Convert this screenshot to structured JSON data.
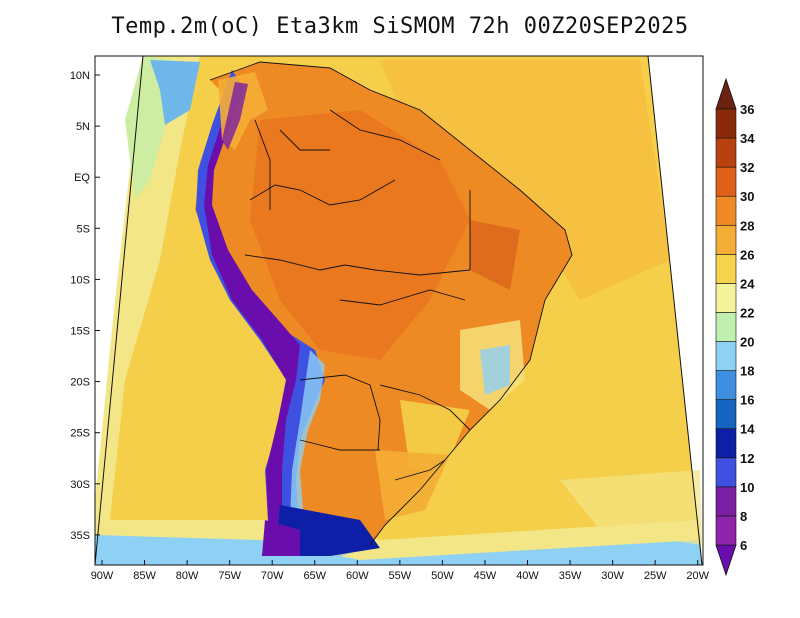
{
  "title": "Temp.2m(oC) Eta3km SiSMOM 72h 00Z20SEP2025",
  "map": {
    "lat_labels": [
      "10N",
      "5N",
      "EQ",
      "5S",
      "10S",
      "15S",
      "20S",
      "25S",
      "30S",
      "35S"
    ],
    "lon_labels": [
      "90W",
      "85W",
      "80W",
      "75W",
      "70W",
      "65W",
      "60W",
      "55W",
      "50W",
      "45W",
      "40W",
      "35W",
      "30W",
      "25W",
      "20W"
    ]
  },
  "colorbar": {
    "levels": [
      "6",
      "8",
      "10",
      "12",
      "14",
      "16",
      "18",
      "20",
      "22",
      "24",
      "26",
      "28",
      "30",
      "32",
      "34",
      "36"
    ],
    "colors": [
      "#6a0dad",
      "#8e24aa",
      "#7b1fa2",
      "#3f51e0",
      "#0d1fa6",
      "#1565c0",
      "#3f8fe0",
      "#8fd0f5",
      "#bff0b0",
      "#f4f29a",
      "#f5d34a",
      "#f4ad35",
      "#f08a25",
      "#e0601a",
      "#b8420f",
      "#8b2a0a",
      "#6b2210"
    ]
  }
}
